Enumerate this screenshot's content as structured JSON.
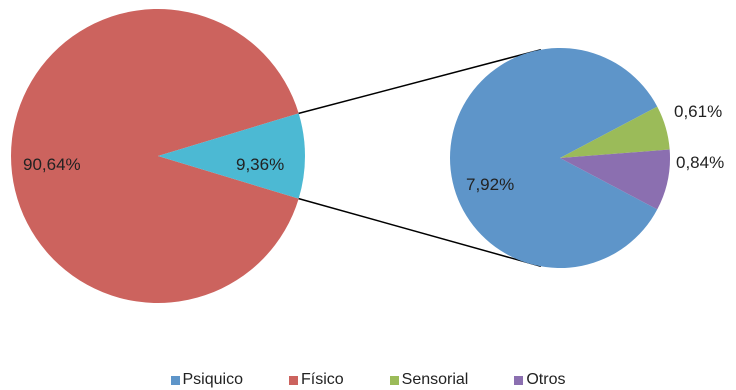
{
  "chart_data": {
    "type": "pie",
    "title": "",
    "main_pie": {
      "slices": [
        {
          "id": "fisico",
          "value": 90.64,
          "label": "90,64%",
          "color": "#CC635E"
        },
        {
          "id": "secondary",
          "value": 9.36,
          "label": "9,36%",
          "color": "#4CB9D3"
        }
      ]
    },
    "secondary_pie": {
      "slices": [
        {
          "id": "psiquico",
          "value": 7.92,
          "label": "7,92%",
          "color": "#5E95C9"
        },
        {
          "id": "sensorial",
          "value": 0.61,
          "label": "0,61%",
          "color": "#9BBB59"
        },
        {
          "id": "otros",
          "value": 0.84,
          "label": "0,84%",
          "color": "#8B6FB0"
        }
      ]
    },
    "legend": [
      {
        "name": "Psiquico",
        "color": "#5E95C9"
      },
      {
        "name": "Físico",
        "color": "#CC635E"
      },
      {
        "name": "Sensorial",
        "color": "#9BBB59"
      },
      {
        "name": "Otros",
        "color": "#8B6FB0"
      }
    ],
    "legend_position": "bottom"
  }
}
